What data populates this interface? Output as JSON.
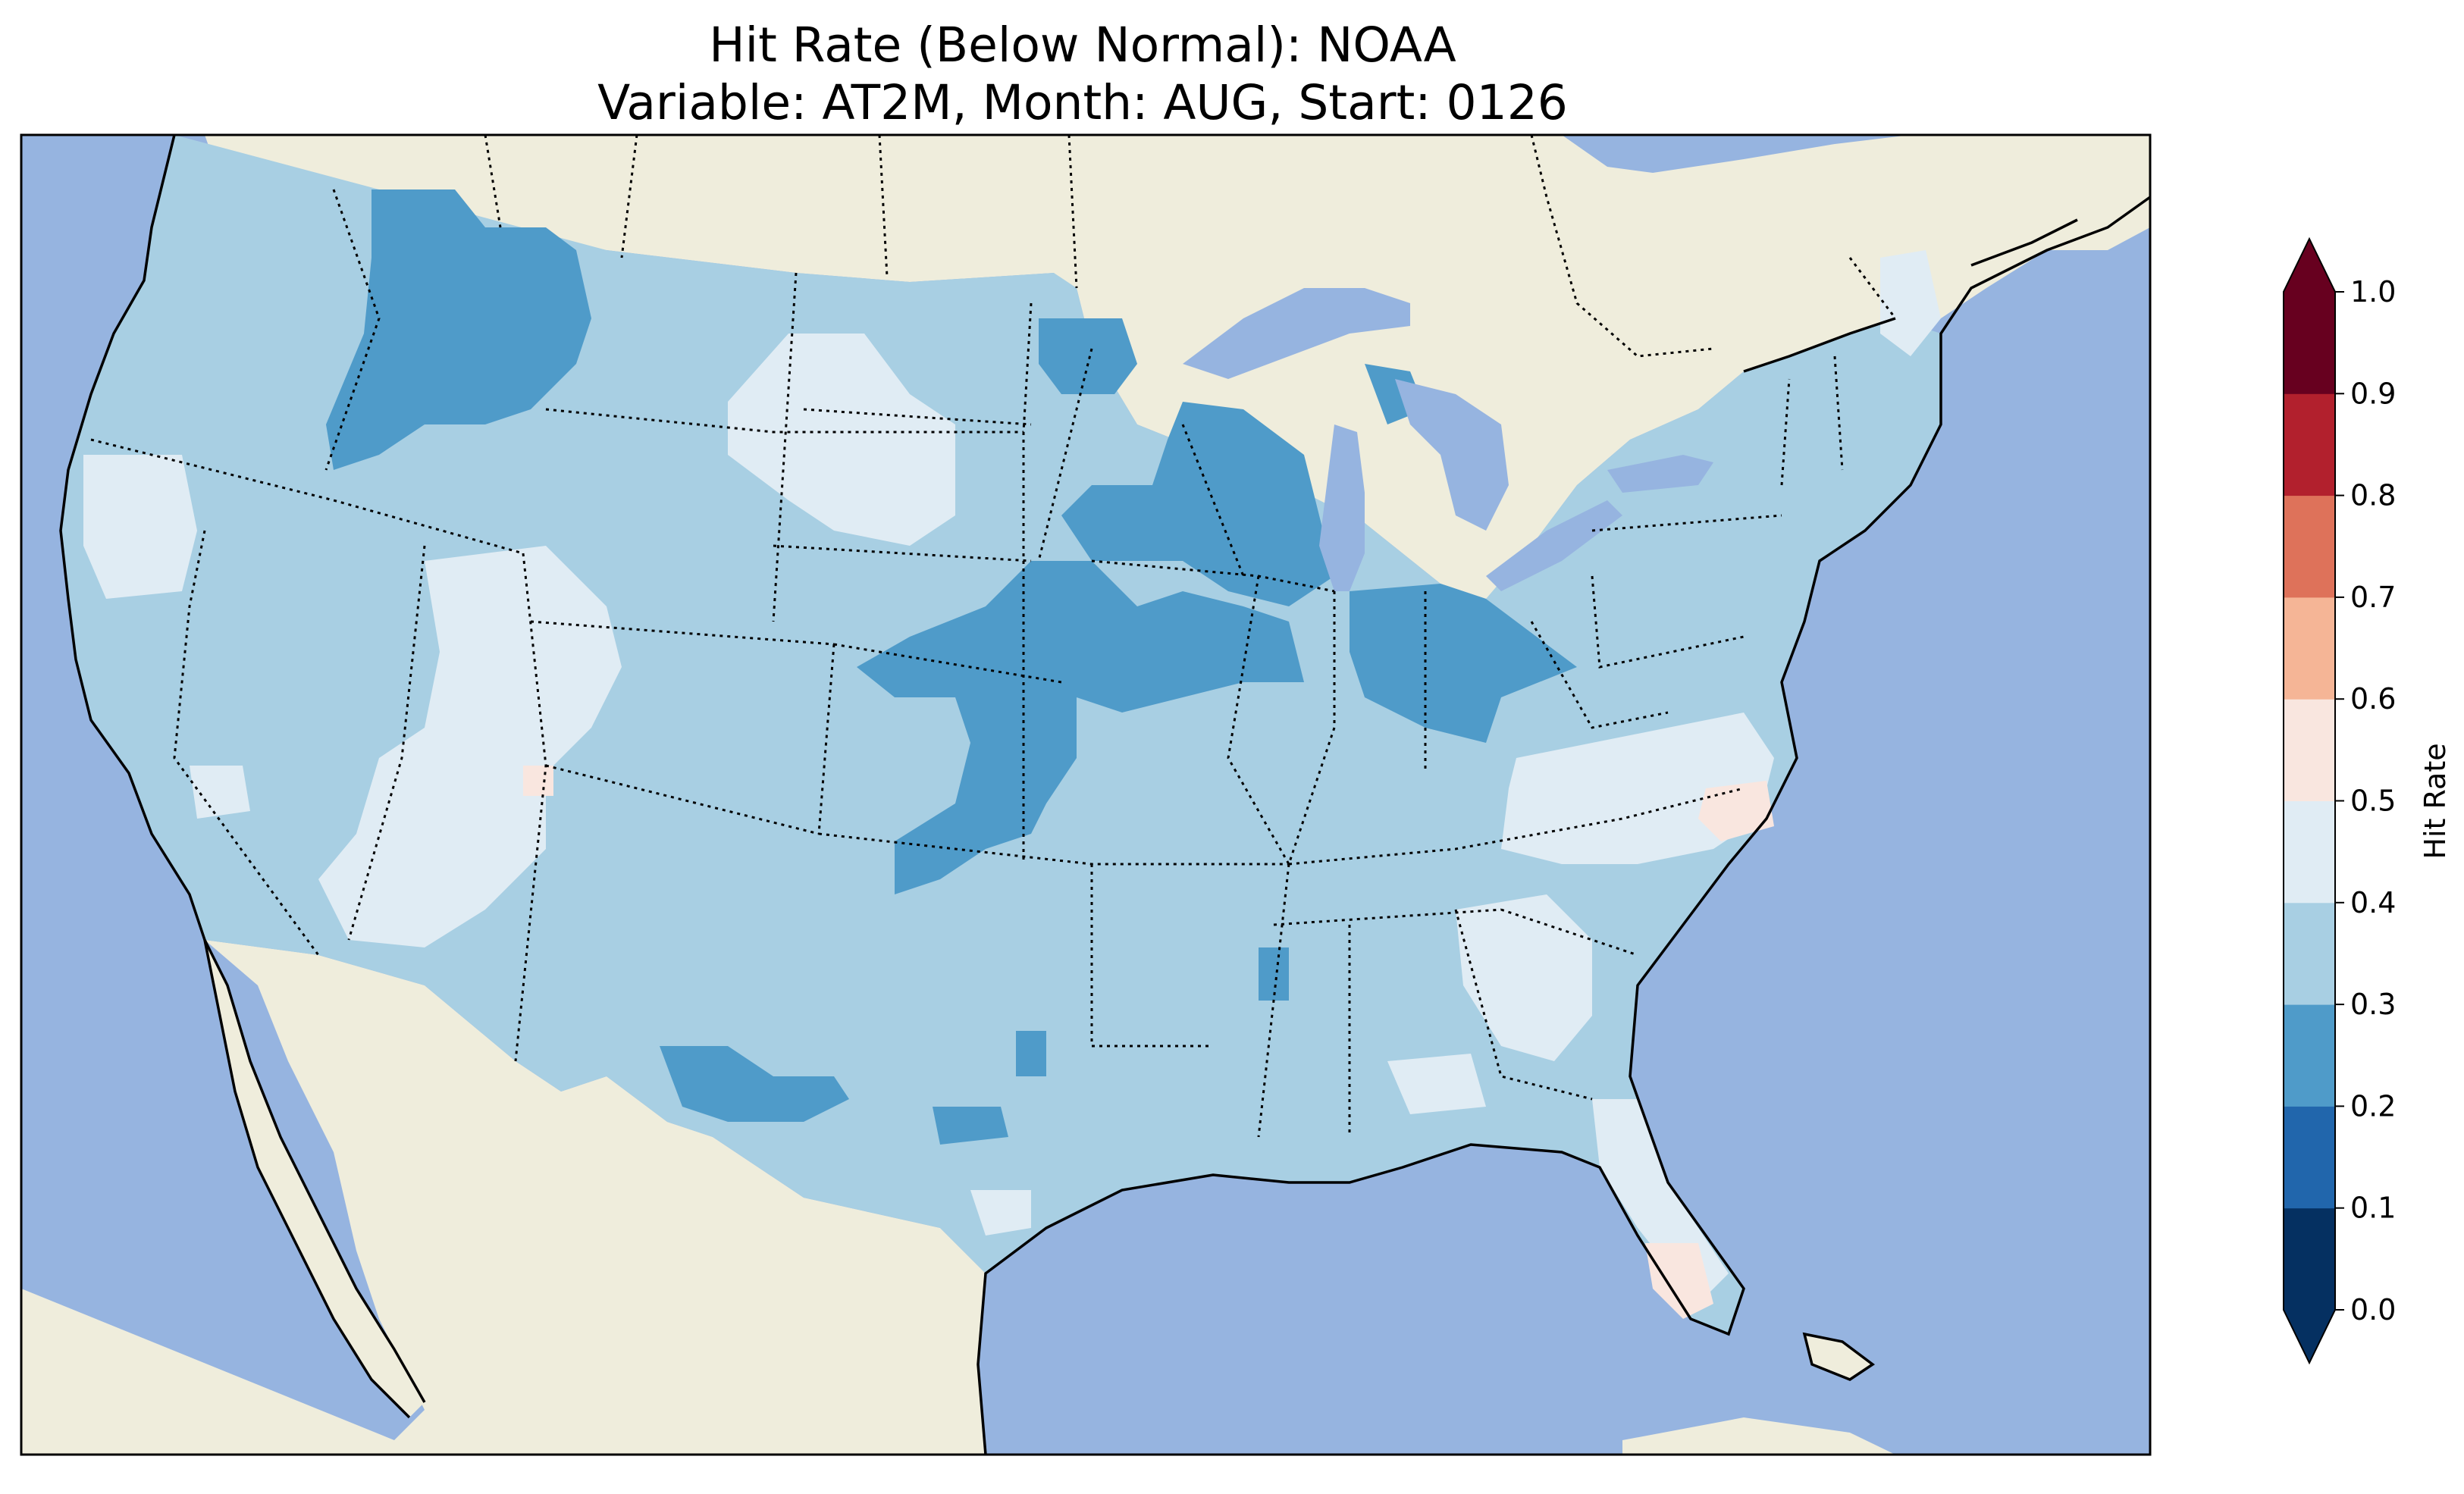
{
  "title": {
    "line1": "Hit Rate (Below Normal): NOAA",
    "line2": "Variable: AT2M, Month: AUG, Start: 0126"
  },
  "colors": {
    "ocean": "#96b4e0",
    "land": "#efeddc",
    "lakes": "#96b4e0",
    "coast": "#000000",
    "borders": "#000000"
  },
  "colorbar": {
    "label": "Hit Rate",
    "ticks": [
      "0.0",
      "0.1",
      "0.2",
      "0.3",
      "0.4",
      "0.5",
      "0.6",
      "0.7",
      "0.8",
      "0.9",
      "1.0"
    ],
    "bins": [
      {
        "range": [
          0.0,
          0.1
        ],
        "color": "#053061"
      },
      {
        "range": [
          0.1,
          0.2
        ],
        "color": "#2166ac"
      },
      {
        "range": [
          0.2,
          0.3
        ],
        "color": "#4f9bc9"
      },
      {
        "range": [
          0.3,
          0.4
        ],
        "color": "#a8cfe3"
      },
      {
        "range": [
          0.4,
          0.5
        ],
        "color": "#e0ecf4"
      },
      {
        "range": [
          0.5,
          0.6
        ],
        "color": "#f9e6df"
      },
      {
        "range": [
          0.6,
          0.7
        ],
        "color": "#f5b596"
      },
      {
        "range": [
          0.7,
          0.8
        ],
        "color": "#de725a"
      },
      {
        "range": [
          0.8,
          0.9
        ],
        "color": "#b2202d"
      },
      {
        "range": [
          0.9,
          1.0
        ],
        "color": "#67001f"
      }
    ],
    "under_color": "#053061",
    "over_color": "#67001f"
  },
  "map_data": {
    "variable": "AT2M",
    "month": "AUG",
    "start": "0126",
    "model": "NOAA",
    "background_class": "0.3-0.4",
    "regions": [
      {
        "area": "Northern Rockies / Idaho-Montana",
        "class": "0.2-0.3"
      },
      {
        "area": "Upper Midwest (Minnesota, Wisconsin)",
        "class": "0.2-0.3"
      },
      {
        "area": "Iowa / Nebraska / Kansas corridor",
        "class": "0.2-0.3"
      },
      {
        "area": "Indiana / Ohio",
        "class": "0.2-0.3"
      },
      {
        "area": "Texas (central)",
        "class": "0.2-0.3"
      },
      {
        "area": "North Dakota / Montana (east)",
        "class": "0.4-0.5"
      },
      {
        "area": "Utah / Arizona / Nevada (south)",
        "class": "0.4-0.5"
      },
      {
        "area": "Northern California",
        "class": "0.4-0.5"
      },
      {
        "area": "Virginia / North Carolina",
        "class": "0.4-0.5"
      },
      {
        "area": "Georgia / Florida",
        "class": "0.4-0.5"
      },
      {
        "area": "Eastern North Carolina",
        "class": "0.5-0.6"
      },
      {
        "area": "Southern Florida",
        "class": "0.5-0.6"
      }
    ]
  }
}
